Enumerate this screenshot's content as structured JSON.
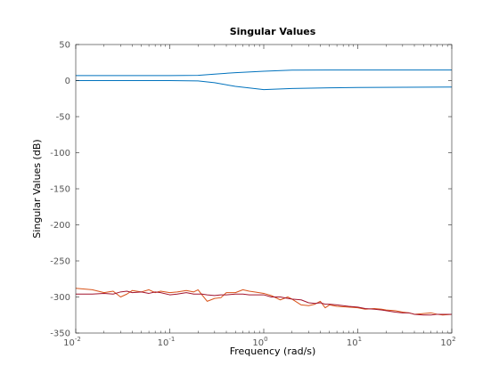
{
  "chart_data": {
    "type": "line",
    "title": "Singular Values",
    "xlabel": "Frequency (rad/s)",
    "ylabel": "Singular Values (dB)",
    "xscale": "log",
    "xlim": [
      0.01,
      100
    ],
    "ylim": [
      -350,
      50
    ],
    "grid": false,
    "legend": "none",
    "y_ticks": [
      "50",
      "0",
      "-50",
      "-100",
      "-150",
      "-200",
      "-250",
      "-300",
      "-350"
    ],
    "x_ticks": [
      {
        "base": "10",
        "exp": "-2"
      },
      {
        "base": "10",
        "exp": "-1"
      },
      {
        "base": "10",
        "exp": "0"
      },
      {
        "base": "10",
        "exp": "1"
      },
      {
        "base": "10",
        "exp": "2"
      }
    ],
    "series": [
      {
        "color": "#0072BD",
        "x": [
          0.01,
          0.1,
          0.2,
          0.3,
          0.5,
          1,
          2,
          5,
          10,
          100
        ],
        "y": [
          7,
          7,
          7.2,
          9,
          11,
          13,
          14.5,
          14.6,
          14.6,
          14.6
        ]
      },
      {
        "color": "#0072BD",
        "x": [
          0.01,
          0.1,
          0.2,
          0.3,
          0.5,
          1,
          2,
          5,
          10,
          100
        ],
        "y": [
          0,
          0,
          -0.5,
          -3,
          -8,
          -12.5,
          -11,
          -10,
          -9.5,
          -9
        ]
      },
      {
        "color": "#D95319",
        "x": [
          0.01,
          0.015,
          0.02,
          0.025,
          0.03,
          0.035,
          0.04,
          0.05,
          0.06,
          0.07,
          0.08,
          0.1,
          0.12,
          0.15,
          0.18,
          0.2,
          0.22,
          0.25,
          0.3,
          0.35,
          0.4,
          0.5,
          0.6,
          0.7,
          0.8,
          1,
          1.2,
          1.5,
          1.8,
          2,
          2.5,
          3,
          3.5,
          4,
          4.5,
          5,
          6,
          8,
          10,
          12,
          15,
          18,
          20,
          25,
          30,
          35,
          40,
          50,
          60,
          70,
          80,
          100
        ],
        "y": [
          -288,
          -290,
          -294,
          -292,
          -300,
          -296,
          -291,
          -293,
          -290,
          -294,
          -292,
          -294,
          -293,
          -291,
          -293,
          -290,
          -297,
          -306,
          -302,
          -301,
          -294,
          -294,
          -290,
          -292,
          -293,
          -295,
          -298,
          -304,
          -300,
          -303,
          -311,
          -312,
          -310,
          -306,
          -315,
          -311,
          -313,
          -314,
          -315,
          -317,
          -316,
          -317,
          -318,
          -319,
          -321,
          -322,
          -324,
          -323,
          -322,
          -324,
          -325,
          -324
        ]
      },
      {
        "color": "#A2142F",
        "x": [
          0.01,
          0.015,
          0.02,
          0.025,
          0.03,
          0.035,
          0.04,
          0.05,
          0.06,
          0.07,
          0.08,
          0.1,
          0.12,
          0.15,
          0.18,
          0.2,
          0.22,
          0.25,
          0.3,
          0.35,
          0.4,
          0.5,
          0.6,
          0.7,
          0.8,
          1,
          1.2,
          1.5,
          1.8,
          2,
          2.5,
          3,
          3.5,
          4,
          4.5,
          5,
          6,
          8,
          10,
          12,
          15,
          18,
          20,
          25,
          30,
          35,
          40,
          50,
          60,
          70,
          80,
          100
        ],
        "y": [
          -296,
          -296,
          -295,
          -296,
          -293,
          -292,
          -294,
          -293,
          -295,
          -293,
          -294,
          -297,
          -296,
          -294,
          -296,
          -296,
          -296,
          -297,
          -298,
          -297,
          -297,
          -296,
          -296,
          -297,
          -297,
          -297,
          -300,
          -300,
          -302,
          -303,
          -304,
          -308,
          -309,
          -308,
          -310,
          -310,
          -311,
          -313,
          -314,
          -316,
          -317,
          -318,
          -319,
          -321,
          -322,
          -322,
          -324,
          -325,
          -325,
          -324,
          -324,
          -324
        ]
      }
    ]
  }
}
